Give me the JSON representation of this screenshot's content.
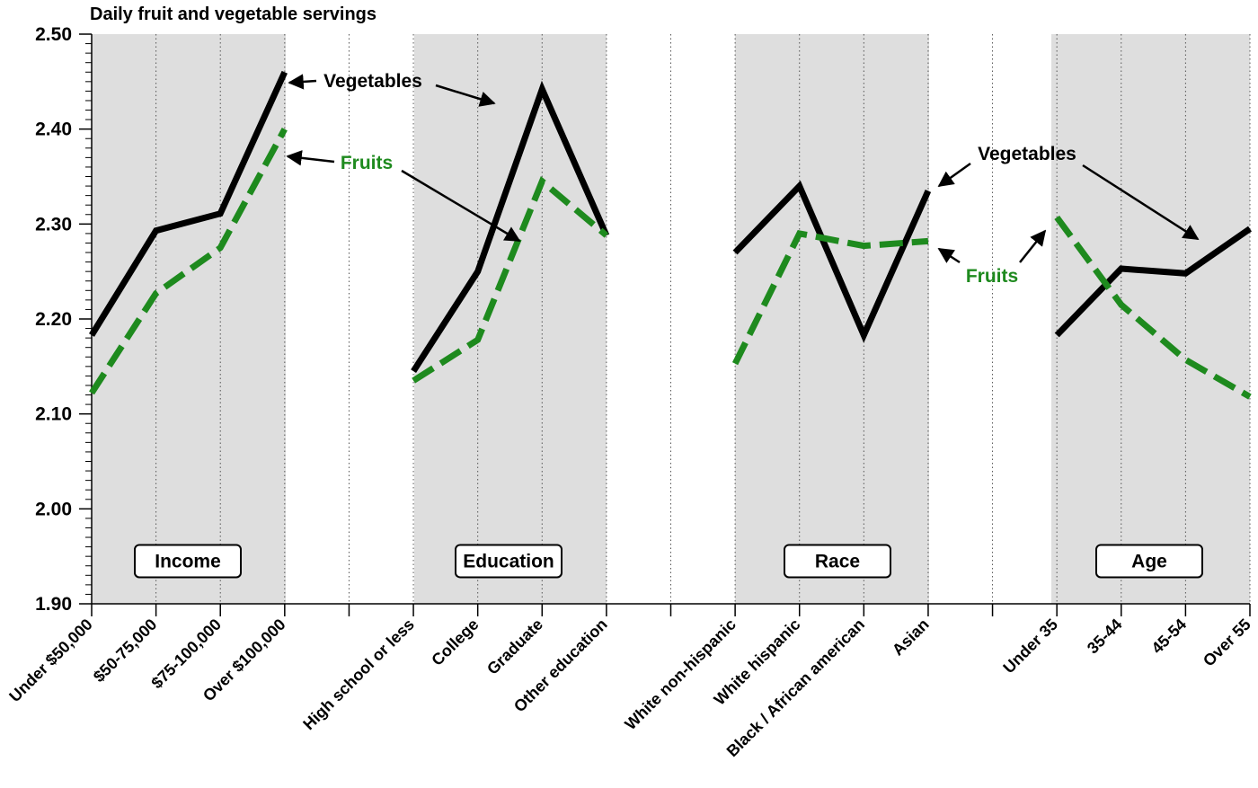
{
  "chart_data": {
    "type": "line",
    "title": "Daily fruit and vegetable servings",
    "ylim": [
      1.9,
      2.5
    ],
    "yticks": [
      "1.90",
      "2.00",
      "2.10",
      "2.20",
      "2.30",
      "2.40",
      "2.50"
    ],
    "grid": "dotted vertical",
    "colors": {
      "Vegetables": "#000000",
      "Fruits": "#1e8a1e",
      "shade": "#dedede"
    },
    "groups": [
      {
        "name": "Income",
        "categories": [
          "Under $50,000",
          "$50-75,000",
          "$75-100,000",
          "Over $100,000"
        ],
        "series": [
          {
            "name": "Vegetables",
            "values": [
              2.183,
              2.293,
              2.311,
              2.46
            ]
          },
          {
            "name": "Fruits",
            "values": [
              2.122,
              2.227,
              2.275,
              2.4
            ]
          }
        ]
      },
      {
        "name": "Education",
        "categories": [
          "High school or less",
          "College",
          "Graduate",
          "Other education"
        ],
        "series": [
          {
            "name": "Vegetables",
            "values": [
              2.145,
              2.25,
              2.442,
              2.288
            ]
          },
          {
            "name": "Fruits",
            "values": [
              2.135,
              2.178,
              2.345,
              2.288
            ]
          }
        ]
      },
      {
        "name": "Race",
        "categories": [
          "White non-hispanic",
          "White hispanic",
          "Black / African american",
          "Asian"
        ],
        "series": [
          {
            "name": "Vegetables",
            "values": [
              2.27,
              2.34,
              2.183,
              2.335
            ]
          },
          {
            "name": "Fruits",
            "values": [
              2.153,
              2.29,
              2.277,
              2.282
            ]
          }
        ]
      },
      {
        "name": "Age",
        "categories": [
          "Under 35",
          "35-44",
          "45-54",
          "Over 55"
        ],
        "series": [
          {
            "name": "Vegetables",
            "values": [
              2.183,
              2.253,
              2.248,
              2.295
            ]
          },
          {
            "name": "Fruits",
            "values": [
              2.307,
              2.215,
              2.157,
              2.118
            ]
          }
        ]
      }
    ],
    "annotations": [
      {
        "text": "Vegetables",
        "color": "#000000",
        "group": "Income/Education"
      },
      {
        "text": "Fruits",
        "color": "#1e8a1e",
        "group": "Income/Education"
      },
      {
        "text": "Vegetables",
        "color": "#000000",
        "group": "Race/Age"
      },
      {
        "text": "Fruits",
        "color": "#1e8a1e",
        "group": "Race/Age"
      }
    ]
  }
}
